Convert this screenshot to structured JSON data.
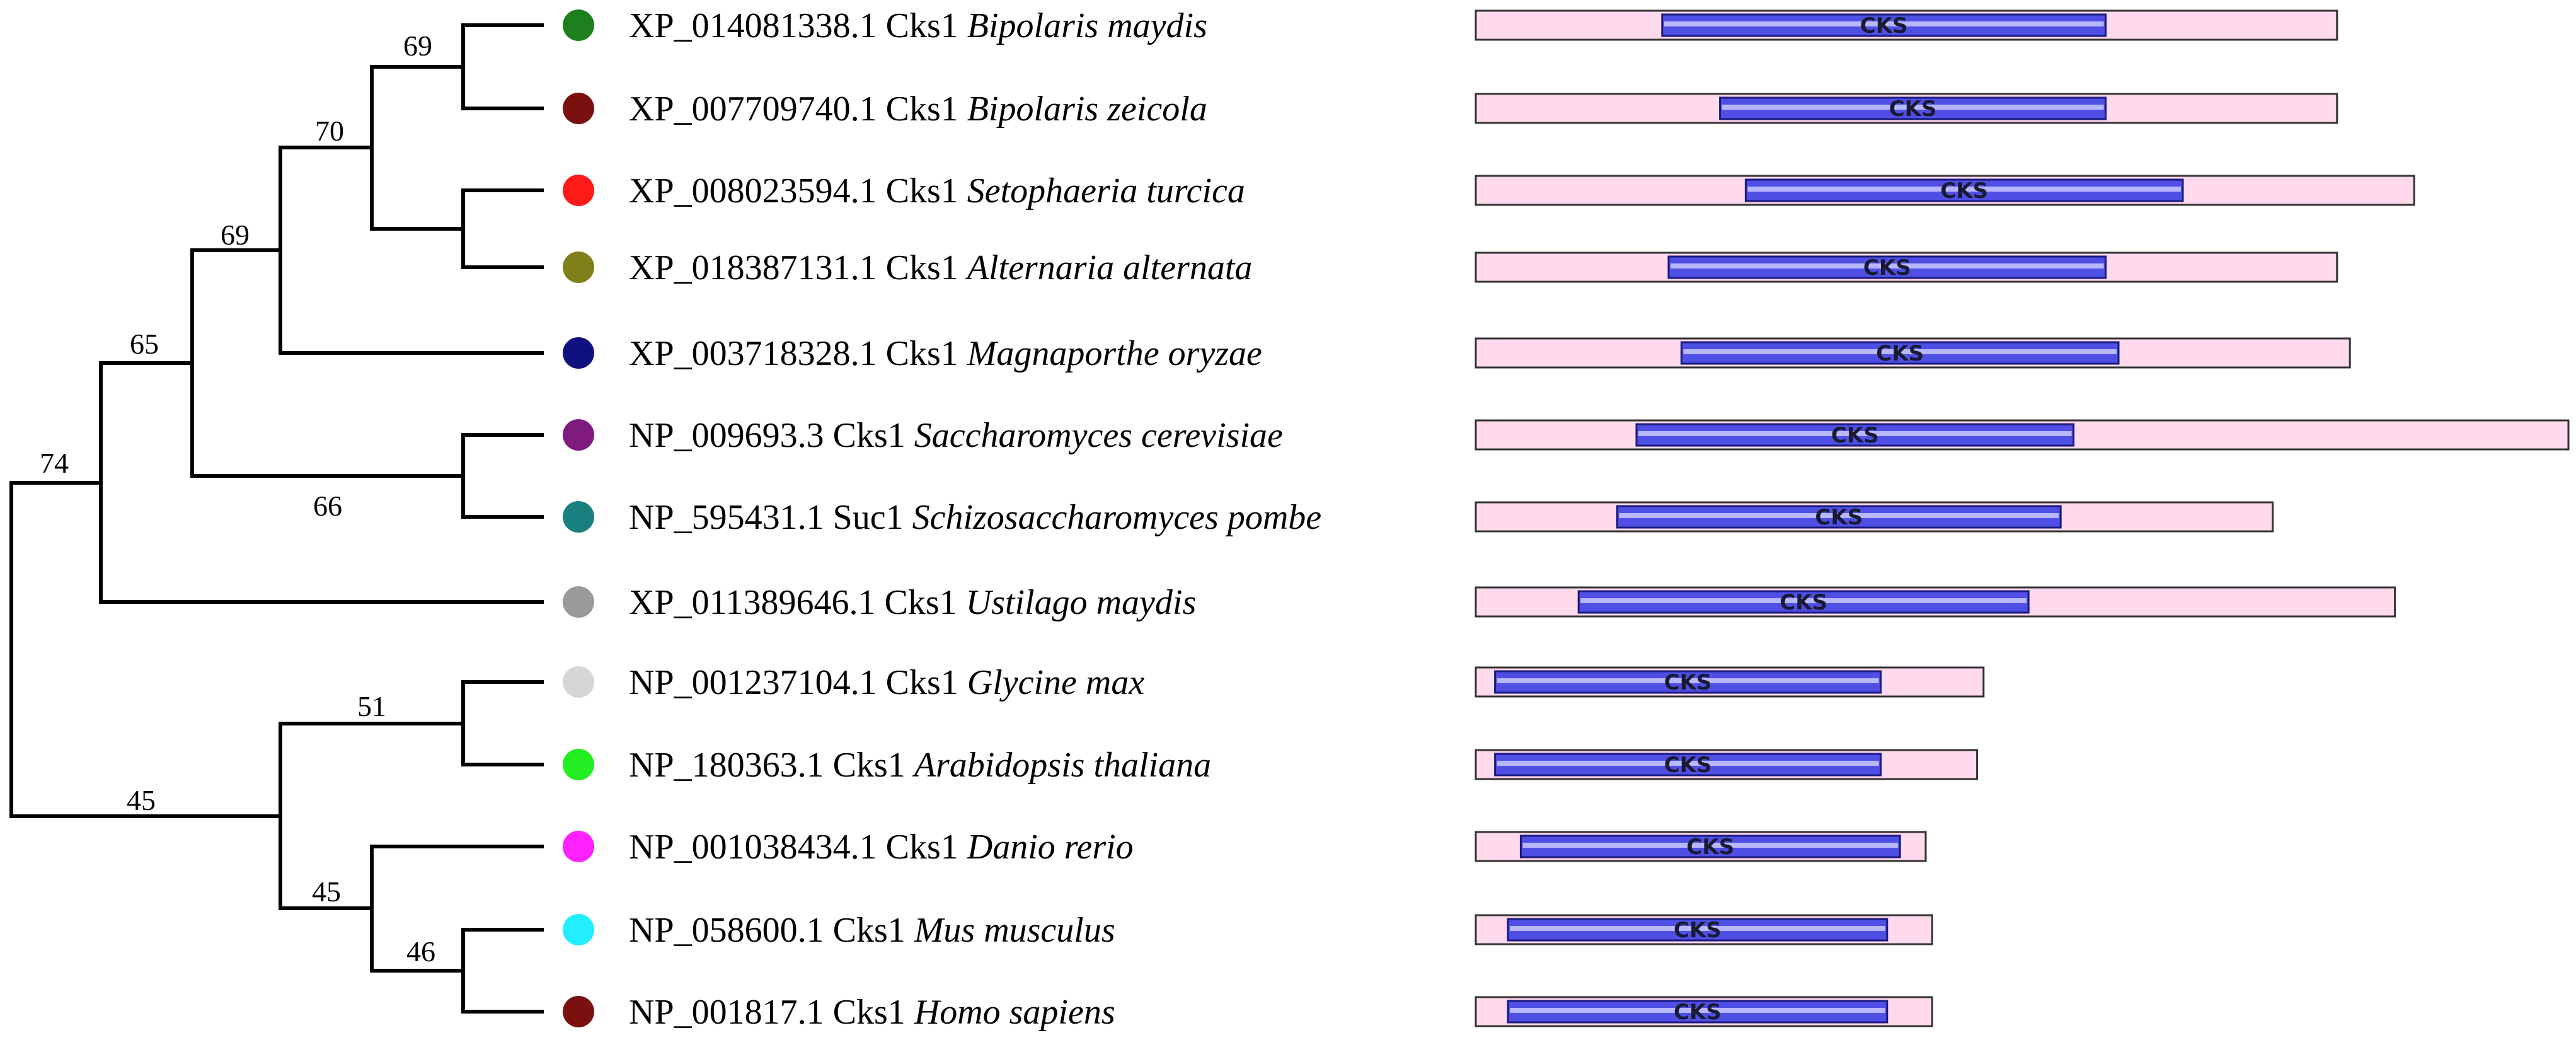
{
  "taxa": [
    {
      "accession": "XP_014081338.1",
      "gene": "Cks1",
      "species": "Bipolaris maydis",
      "color": "#1e7f1e"
    },
    {
      "accession": "XP_007709740.1",
      "gene": "Cks1",
      "species": "Bipolaris zeicola",
      "color": "#7a1010"
    },
    {
      "accession": "XP_008023594.1",
      "gene": "Cks1",
      "species": "Setophaeria turcica",
      "color": "#ff1a1a"
    },
    {
      "accession": "XP_018387131.1",
      "gene": "Cks1",
      "species": "Alternaria alternata",
      "color": "#80801a"
    },
    {
      "accession": "XP_003718328.1",
      "gene": "Cks1",
      "species": "Magnaporthe oryzae",
      "color": "#10107f"
    },
    {
      "accession": "NP_009693.3",
      "gene": "Cks1",
      "species": "Saccharomyces cerevisiae",
      "color": "#7f1a7f"
    },
    {
      "accession": "NP_595431.1",
      "gene": "Suc1",
      "species": "Schizosaccharomyces pombe",
      "color": "#1a7f7f"
    },
    {
      "accession": "XP_011389646.1",
      "gene": "Cks1",
      "species": "Ustilago maydis",
      "color": "#9a9a9a"
    },
    {
      "accession": "NP_001237104.1",
      "gene": "Cks1",
      "species": "Glycine max",
      "color": "#d6d6d6"
    },
    {
      "accession": "NP_180363.1",
      "gene": "Cks1",
      "species": "Arabidopsis thaliana",
      "color": "#22ee22"
    },
    {
      "accession": "NP_001038434.1",
      "gene": "Cks1",
      "species": "Danio rerio",
      "color": "#ff22ff"
    },
    {
      "accession": "NP_058600.1",
      "gene": "Cks1",
      "species": "Mus musculus",
      "color": "#22eeff"
    },
    {
      "accession": "NP_001817.1",
      "gene": "Cks1",
      "species": "Homo sapiens",
      "color": "#7a1010"
    }
  ],
  "bootstrap": [
    "69",
    "70",
    "69",
    "65",
    "66",
    "74",
    "51",
    "45",
    "46",
    "45"
  ],
  "domains": [
    {
      "protein_length": 134,
      "domain_start": 29,
      "domain_end": 98,
      "domain_label": "CKS"
    },
    {
      "protein_length": 134,
      "domain_start": 38,
      "domain_end": 98,
      "domain_label": "CKS"
    },
    {
      "protein_length": 146,
      "domain_start": 42,
      "domain_end": 110,
      "domain_label": "CKS"
    },
    {
      "protein_length": 134,
      "domain_start": 30,
      "domain_end": 98,
      "domain_label": "CKS"
    },
    {
      "protein_length": 136,
      "domain_start": 32,
      "domain_end": 100,
      "domain_label": "CKS"
    },
    {
      "protein_length": 170,
      "domain_start": 25,
      "domain_end": 93,
      "domain_label": "CKS"
    },
    {
      "protein_length": 124,
      "domain_start": 22,
      "domain_end": 91,
      "domain_label": "CKS"
    },
    {
      "protein_length": 143,
      "domain_start": 16,
      "domain_end": 86,
      "domain_label": "CKS"
    },
    {
      "protein_length": 79,
      "domain_start": 3,
      "domain_end": 63,
      "domain_label": "CKS"
    },
    {
      "protein_length": 78,
      "domain_start": 3,
      "domain_end": 63,
      "domain_label": "CKS"
    },
    {
      "protein_length": 70,
      "domain_start": 7,
      "domain_end": 66,
      "domain_label": "CKS"
    },
    {
      "protein_length": 71,
      "domain_start": 5,
      "domain_end": 64,
      "domain_label": "CKS"
    },
    {
      "protein_length": 71,
      "domain_start": 5,
      "domain_end": 64,
      "domain_label": "CKS"
    }
  ]
}
